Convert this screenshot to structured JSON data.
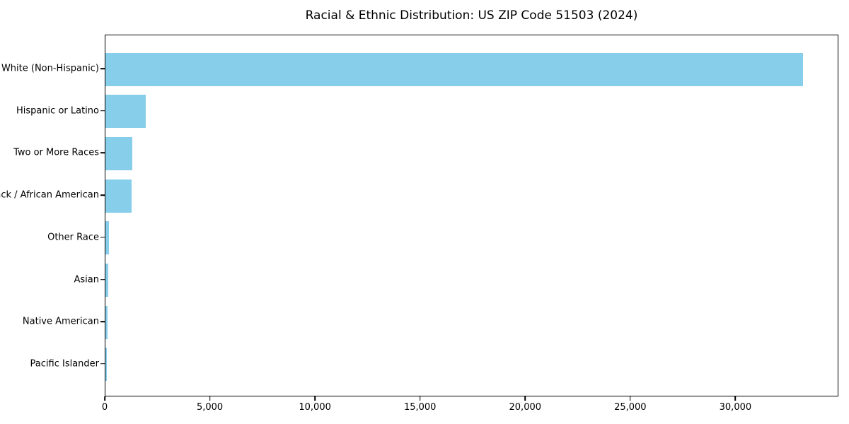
{
  "chart_data": {
    "type": "bar",
    "orientation": "horizontal",
    "title": "Racial & Ethnic Distribution: US ZIP Code 51503 (2024)",
    "categories": [
      "White (Non-Hispanic)",
      "Hispanic or Latino",
      "Two or More Races",
      "Black / African American",
      "Other Race",
      "Asian",
      "Native American",
      "Pacific Islander"
    ],
    "values": [
      33200,
      1920,
      1290,
      1230,
      160,
      135,
      100,
      80
    ],
    "bar_color": "#87CEEB",
    "xlabel": "",
    "ylabel": "",
    "xlim": [
      0,
      34900
    ],
    "xticks": [
      0,
      5000,
      10000,
      15000,
      20000,
      25000,
      30000
    ],
    "xtick_labels": [
      "0",
      "5,000",
      "10,000",
      "15,000",
      "20,000",
      "25,000",
      "30,000"
    ],
    "grid": false,
    "legend": "none",
    "value_axis": "x",
    "category_order": "top-to-bottom descending"
  }
}
